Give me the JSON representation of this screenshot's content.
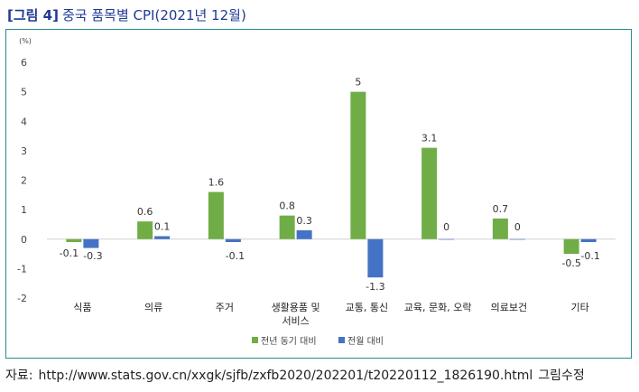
{
  "header": {
    "tag": "[그림 4]",
    "title": "중국 품목별 CPI(2021년 12월)"
  },
  "source": {
    "label": "자료:",
    "url": "http://www.stats.gov.cn/xxgk/sjfb/zxfb2020/202201/t20220112_1826190.html",
    "note": "그림수정"
  },
  "chart_data": {
    "type": "bar",
    "unit_label": "(%)",
    "categories": [
      "식품",
      "의류",
      "주거",
      "생활용품 및\n서비스",
      "교통, 통신",
      "교육, 문화, 오락",
      "의료보건",
      "기타"
    ],
    "series": [
      {
        "name": "전년 동기 대비",
        "color": "#70ad47",
        "values": [
          -0.1,
          0.6,
          1.6,
          0.8,
          5,
          3.1,
          0.7,
          -0.5
        ]
      },
      {
        "name": "전월 대비",
        "color": "#4472c4",
        "values": [
          -0.3,
          0.1,
          -0.1,
          0.3,
          -1.3,
          0,
          0,
          -0.1
        ]
      }
    ],
    "ylim": [
      -2,
      6
    ],
    "yticks": [
      -2,
      -1,
      0,
      1,
      2,
      3,
      4,
      5,
      6
    ],
    "legend_position": "bottom",
    "grid": false
  }
}
